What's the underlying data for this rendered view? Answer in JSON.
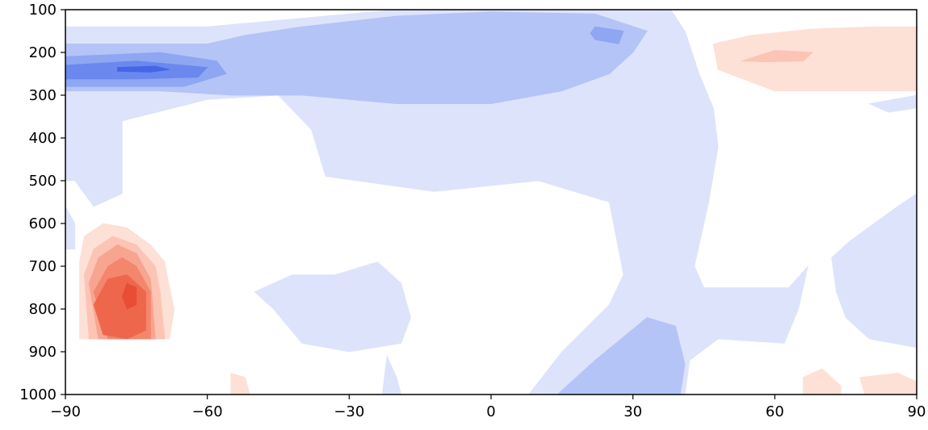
{
  "chart_data": {
    "type": "heatmap",
    "subtype": "filled-contour",
    "title": "",
    "xlabel": "",
    "ylabel": "",
    "xlim": [
      -90,
      90
    ],
    "ylim": [
      1000,
      100
    ],
    "y_inverted": true,
    "grid": false,
    "legend": "none",
    "x_ticks": [
      -90,
      -60,
      -30,
      0,
      30,
      60,
      90
    ],
    "x_tick_labels": [
      "−90",
      "−60",
      "−30",
      "0",
      "30",
      "60",
      "90"
    ],
    "y_ticks": [
      100,
      200,
      300,
      400,
      500,
      600,
      700,
      800,
      900,
      1000
    ],
    "y_tick_labels": [
      "100",
      "200",
      "300",
      "400",
      "500",
      "600",
      "700",
      "800",
      "900",
      "1000"
    ],
    "colormap": "coolwarm (diverging, zero level white)",
    "colors": {
      "neg_1": "#dde3fb",
      "neg_2": "#b4c4f6",
      "neg_3": "#8fa6f2",
      "neg_4": "#6a88ee",
      "neg_5": "#4566e6",
      "pos_1": "#fde0d6",
      "pos_2": "#fbc4b4",
      "pos_3": "#f7a590",
      "pos_4": "#f3866d",
      "pos_5": "#ee674c",
      "pos_6": "#e84e35",
      "axes": "#000000"
    },
    "regions": [
      {
        "level": "neg_1",
        "points": [
          [
            -90,
            140
          ],
          [
            -60,
            140
          ],
          [
            -40,
            120
          ],
          [
            -20,
            100
          ],
          [
            10,
            85
          ],
          [
            38,
            100
          ],
          [
            41,
            150
          ],
          [
            44,
            250
          ],
          [
            47,
            330
          ],
          [
            48,
            420
          ],
          [
            46,
            550
          ],
          [
            43,
            700
          ],
          [
            45,
            750
          ],
          [
            63,
            750
          ],
          [
            67,
            700
          ],
          [
            65,
            800
          ],
          [
            62,
            880
          ],
          [
            48,
            870
          ],
          [
            42,
            920
          ],
          [
            41,
            1000
          ],
          [
            8,
            1000
          ],
          [
            15,
            900
          ],
          [
            25,
            790
          ],
          [
            28,
            720
          ],
          [
            25,
            550
          ],
          [
            10,
            500
          ],
          [
            -12,
            525
          ],
          [
            -35,
            490
          ],
          [
            -38,
            380
          ],
          [
            -45,
            300
          ],
          [
            -60,
            310
          ],
          [
            -78,
            360
          ],
          [
            -78,
            530
          ],
          [
            -84,
            560
          ],
          [
            -88,
            500
          ],
          [
            -90,
            500
          ]
        ]
      },
      {
        "level": "neg_1",
        "points": [
          [
            -90,
            560
          ],
          [
            -88,
            600
          ],
          [
            -88,
            660
          ],
          [
            -90,
            660
          ]
        ]
      },
      {
        "level": "neg_1",
        "points": [
          [
            -50,
            760
          ],
          [
            -42,
            720
          ],
          [
            -33,
            720
          ],
          [
            -24,
            690
          ],
          [
            -19,
            740
          ],
          [
            -17,
            820
          ],
          [
            -19,
            880
          ],
          [
            -30,
            900
          ],
          [
            -40,
            880
          ],
          [
            -46,
            800
          ]
        ]
      },
      {
        "level": "neg_1",
        "points": [
          [
            -22,
            910
          ],
          [
            -20,
            960
          ],
          [
            -19,
            1000
          ],
          [
            -23,
            1000
          ]
        ]
      },
      {
        "level": "neg_1",
        "points": [
          [
            90,
            530
          ],
          [
            86,
            560
          ],
          [
            76,
            640
          ],
          [
            72,
            680
          ],
          [
            73,
            760
          ],
          [
            75,
            820
          ],
          [
            80,
            870
          ],
          [
            90,
            890
          ]
        ]
      },
      {
        "level": "neg_1",
        "points": [
          [
            90,
            300
          ],
          [
            80,
            320
          ],
          [
            84,
            340
          ],
          [
            90,
            330
          ]
        ]
      },
      {
        "level": "neg_2",
        "points": [
          [
            -90,
            180
          ],
          [
            -60,
            180
          ],
          [
            -52,
            160
          ],
          [
            -40,
            140
          ],
          [
            -20,
            115
          ],
          [
            0,
            105
          ],
          [
            22,
            110
          ],
          [
            33,
            150
          ],
          [
            30,
            200
          ],
          [
            25,
            250
          ],
          [
            15,
            290
          ],
          [
            0,
            320
          ],
          [
            -20,
            320
          ],
          [
            -40,
            300
          ],
          [
            -55,
            300
          ],
          [
            -70,
            290
          ],
          [
            -90,
            290
          ]
        ]
      },
      {
        "level": "neg_2",
        "points": [
          [
            14,
            1000
          ],
          [
            22,
            920
          ],
          [
            33,
            820
          ],
          [
            39,
            840
          ],
          [
            41,
            930
          ],
          [
            40,
            1000
          ]
        ]
      },
      {
        "level": "neg_3",
        "points": [
          [
            -90,
            210
          ],
          [
            -70,
            200
          ],
          [
            -58,
            220
          ],
          [
            -56,
            250
          ],
          [
            -65,
            280
          ],
          [
            -90,
            280
          ]
        ]
      },
      {
        "level": "neg_3",
        "points": [
          [
            22,
            140
          ],
          [
            28,
            150
          ],
          [
            27,
            180
          ],
          [
            22,
            170
          ],
          [
            21,
            155
          ]
        ]
      },
      {
        "level": "neg_4",
        "points": [
          [
            -90,
            230
          ],
          [
            -75,
            220
          ],
          [
            -60,
            235
          ],
          [
            -62,
            258
          ],
          [
            -75,
            262
          ],
          [
            -90,
            262
          ]
        ]
      },
      {
        "level": "neg_5",
        "points": [
          [
            -79,
            235
          ],
          [
            -71,
            232
          ],
          [
            -68,
            240
          ],
          [
            -72,
            246
          ],
          [
            -79,
            244
          ]
        ]
      },
      {
        "level": "pos_1",
        "points": [
          [
            47,
            180
          ],
          [
            55,
            160
          ],
          [
            68,
            145
          ],
          [
            82,
            140
          ],
          [
            90,
            140
          ],
          [
            90,
            290
          ],
          [
            78,
            290
          ],
          [
            60,
            290
          ],
          [
            48,
            240
          ]
        ]
      },
      {
        "level": "pos_1",
        "points": [
          [
            -87,
            750
          ],
          [
            -87,
            690
          ],
          [
            -86,
            630
          ],
          [
            -82,
            600
          ],
          [
            -77,
            610
          ],
          [
            -72,
            650
          ],
          [
            -69,
            690
          ],
          [
            -68,
            750
          ],
          [
            -67,
            800
          ],
          [
            -68,
            870
          ],
          [
            -87,
            870
          ]
        ]
      },
      {
        "level": "pos_1",
        "points": [
          [
            -55,
            950
          ],
          [
            -52,
            960
          ],
          [
            -51,
            1000
          ],
          [
            -55,
            1000
          ]
        ]
      },
      {
        "level": "pos_1",
        "points": [
          [
            66,
            960
          ],
          [
            70,
            940
          ],
          [
            74,
            980
          ],
          [
            74,
            1000
          ],
          [
            66,
            1000
          ]
        ]
      },
      {
        "level": "pos_1",
        "points": [
          [
            78,
            960
          ],
          [
            86,
            950
          ],
          [
            90,
            970
          ],
          [
            90,
            1000
          ],
          [
            79,
            1000
          ]
        ]
      },
      {
        "level": "pos_2",
        "points": [
          [
            53,
            220
          ],
          [
            60,
            195
          ],
          [
            68,
            200
          ],
          [
            66,
            220
          ],
          [
            58,
            222
          ]
        ]
      },
      {
        "level": "pos_2",
        "points": [
          [
            -86,
            720
          ],
          [
            -84,
            660
          ],
          [
            -80,
            630
          ],
          [
            -75,
            650
          ],
          [
            -71,
            700
          ],
          [
            -70,
            760
          ],
          [
            -69,
            870
          ],
          [
            -85,
            870
          ]
        ]
      },
      {
        "level": "pos_3",
        "points": [
          [
            -85,
            740
          ],
          [
            -83,
            680
          ],
          [
            -79,
            650
          ],
          [
            -75,
            670
          ],
          [
            -72,
            730
          ],
          [
            -71,
            870
          ],
          [
            -83,
            870
          ]
        ]
      },
      {
        "level": "pos_4",
        "points": [
          [
            -84,
            760
          ],
          [
            -81,
            700
          ],
          [
            -78,
            680
          ],
          [
            -75,
            700
          ],
          [
            -72,
            760
          ],
          [
            -72,
            870
          ],
          [
            -81,
            870
          ]
        ]
      },
      {
        "level": "pos_5",
        "points": [
          [
            -84,
            790
          ],
          [
            -81,
            730
          ],
          [
            -77,
            720
          ],
          [
            -73,
            760
          ],
          [
            -73,
            850
          ],
          [
            -77,
            870
          ],
          [
            -82,
            860
          ]
        ]
      },
      {
        "level": "pos_6",
        "points": [
          [
            -78,
            770
          ],
          [
            -77,
            740
          ],
          [
            -75,
            750
          ],
          [
            -75,
            790
          ],
          [
            -77,
            800
          ]
        ]
      }
    ]
  }
}
